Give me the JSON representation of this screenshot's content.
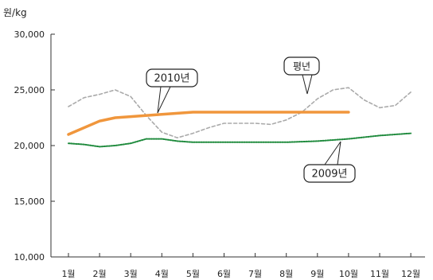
{
  "chart_data": {
    "type": "line",
    "title": "",
    "ylabel": "원/kg",
    "xlabel": "",
    "ylim": [
      10000,
      30000
    ],
    "yticks": [
      10000,
      15000,
      20000,
      25000,
      30000
    ],
    "ytick_labels": [
      "10,000",
      "15,000",
      "20,000",
      "25,000",
      "30,000"
    ],
    "categories": [
      "1월",
      "2월",
      "3월",
      "4월",
      "5월",
      "6월",
      "7월",
      "8월",
      "9월",
      "10월",
      "11월",
      "12월"
    ],
    "grid": false,
    "legend": "inline-callouts",
    "series": [
      {
        "name": "평년",
        "style": "dashed",
        "color": "#aaaaaa",
        "x": [
          1,
          1.5,
          2,
          2.5,
          3,
          3.5,
          4,
          4.5,
          5,
          5.5,
          6,
          6.5,
          7,
          7.5,
          8,
          8.5,
          9,
          9.5,
          10,
          10.5,
          11,
          11.5,
          12
        ],
        "values": [
          23500,
          24300,
          24600,
          25000,
          24400,
          22700,
          21200,
          20700,
          21100,
          21600,
          22000,
          22000,
          22000,
          21900,
          22300,
          23000,
          24200,
          25000,
          25200,
          24100,
          23400,
          23600,
          24800
        ]
      },
      {
        "name": "2010년",
        "style": "solid-thick",
        "color": "#f0963c",
        "x": [
          1,
          2,
          2.5,
          3,
          4,
          5,
          6,
          7,
          8,
          9,
          10
        ],
        "values": [
          21000,
          22200,
          22500,
          22600,
          22800,
          23000,
          23000,
          23000,
          23000,
          23000,
          23000
        ]
      },
      {
        "name": "2009년",
        "style": "dotted",
        "color": "#1e8a3c",
        "x": [
          1,
          1.5,
          2,
          2.5,
          3,
          3.5,
          4,
          4.5,
          5,
          6,
          7,
          8,
          9,
          10,
          11,
          12
        ],
        "values": [
          20200,
          20100,
          19900,
          20000,
          20200,
          20600,
          20600,
          20400,
          20300,
          20300,
          20300,
          20300,
          20400,
          20600,
          20900,
          21100
        ]
      }
    ]
  }
}
